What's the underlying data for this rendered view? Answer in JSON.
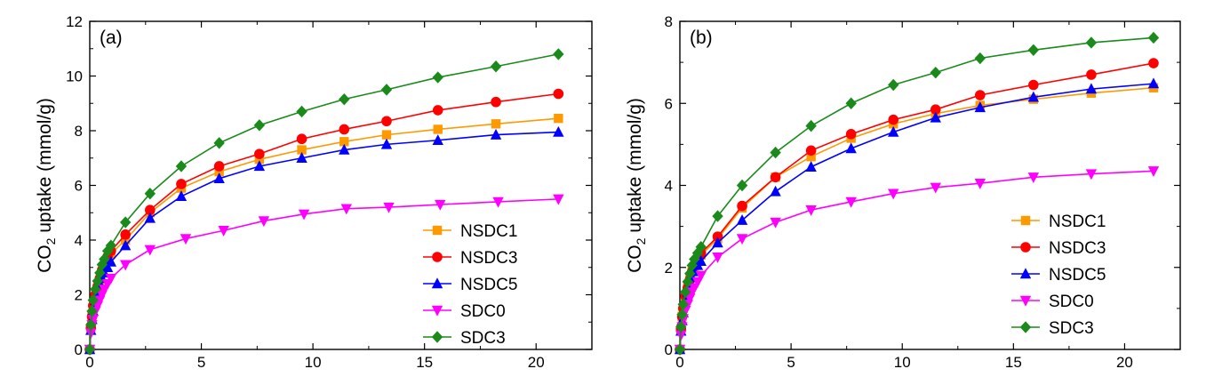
{
  "chart_data": [
    {
      "type": "line",
      "panel_label": "(a)",
      "xlabel": "",
      "ylabel_parts": {
        "pre": "CO",
        "sub": "2",
        "post": " uptake (mmol/g)"
      },
      "xlim": [
        0,
        22.5
      ],
      "ylim": [
        0,
        12
      ],
      "xticks": [
        0,
        5,
        10,
        15,
        20
      ],
      "yticks": [
        0,
        2,
        4,
        6,
        8,
        10,
        12
      ],
      "grid": false,
      "legend_position": "bottom-right",
      "series": [
        {
          "name": "NSDC1",
          "color": "#ff9900",
          "marker": "square",
          "x": [
            0,
            0.05,
            0.1,
            0.15,
            0.25,
            0.35,
            0.45,
            0.55,
            0.65,
            0.8,
            0.95,
            1.6,
            2.7,
            4.1,
            5.8,
            7.6,
            9.5,
            11.4,
            13.3,
            15.6,
            18.2,
            21.0
          ],
          "y": [
            0,
            0.8,
            1.2,
            1.5,
            1.9,
            2.2,
            2.5,
            2.8,
            3.0,
            3.3,
            3.5,
            4.0,
            5.0,
            5.9,
            6.5,
            6.95,
            7.3,
            7.6,
            7.85,
            8.05,
            8.25,
            8.45
          ]
        },
        {
          "name": "NSDC3",
          "color": "#ff0000",
          "marker": "circle",
          "x": [
            0,
            0.05,
            0.1,
            0.15,
            0.25,
            0.35,
            0.45,
            0.55,
            0.65,
            0.8,
            0.95,
            1.6,
            2.7,
            4.1,
            5.8,
            7.6,
            9.5,
            11.4,
            13.3,
            15.6,
            18.2,
            21.0
          ],
          "y": [
            0,
            0.8,
            1.2,
            1.6,
            2.0,
            2.3,
            2.6,
            2.9,
            3.1,
            3.4,
            3.6,
            4.2,
            5.1,
            6.05,
            6.7,
            7.15,
            7.7,
            8.05,
            8.35,
            8.75,
            9.05,
            9.35
          ]
        },
        {
          "name": "NSDC5",
          "color": "#0000ff",
          "marker": "triangle-up",
          "x": [
            0,
            0.05,
            0.1,
            0.15,
            0.25,
            0.35,
            0.45,
            0.55,
            0.65,
            0.8,
            0.95,
            1.6,
            2.7,
            4.1,
            5.8,
            7.6,
            9.5,
            11.4,
            13.3,
            15.6,
            18.2,
            21.0
          ],
          "y": [
            0,
            0.7,
            1.1,
            1.4,
            1.8,
            2.1,
            2.4,
            2.6,
            2.8,
            3.0,
            3.2,
            3.8,
            4.8,
            5.6,
            6.25,
            6.7,
            7.0,
            7.3,
            7.5,
            7.65,
            7.85,
            7.95
          ]
        },
        {
          "name": "SDC0",
          "color": "#ff00ff",
          "marker": "triangle-down",
          "x": [
            0,
            0.05,
            0.1,
            0.15,
            0.25,
            0.35,
            0.45,
            0.55,
            0.65,
            0.8,
            0.95,
            1.6,
            2.7,
            4.3,
            6.0,
            7.8,
            9.6,
            11.5,
            13.4,
            15.7,
            18.3,
            21.0
          ],
          "y": [
            0,
            0.6,
            0.9,
            1.1,
            1.4,
            1.6,
            1.8,
            2.0,
            2.2,
            2.4,
            2.6,
            3.1,
            3.65,
            4.05,
            4.35,
            4.7,
            4.95,
            5.15,
            5.2,
            5.3,
            5.4,
            5.5
          ]
        },
        {
          "name": "SDC3",
          "color": "#1a8a1a",
          "marker": "diamond",
          "x": [
            0,
            0.05,
            0.1,
            0.15,
            0.25,
            0.35,
            0.45,
            0.55,
            0.65,
            0.8,
            0.95,
            1.6,
            2.7,
            4.1,
            5.8,
            7.6,
            9.5,
            11.4,
            13.3,
            15.6,
            18.2,
            21.0
          ],
          "y": [
            0,
            0.9,
            1.4,
            1.8,
            2.2,
            2.5,
            2.8,
            3.1,
            3.3,
            3.6,
            3.8,
            4.65,
            5.7,
            6.7,
            7.55,
            8.2,
            8.7,
            9.15,
            9.5,
            9.95,
            10.35,
            10.8
          ]
        }
      ]
    },
    {
      "type": "line",
      "panel_label": "(b)",
      "xlabel": "",
      "ylabel_parts": {
        "pre": "CO",
        "sub": "2",
        "post": " uptake (mmol/g)"
      },
      "xlim": [
        0,
        22.5
      ],
      "ylim": [
        0,
        8
      ],
      "xticks": [
        0,
        5,
        10,
        15,
        20
      ],
      "yticks": [
        0,
        2,
        4,
        6,
        8
      ],
      "grid": false,
      "legend_position": "bottom-right",
      "series": [
        {
          "name": "NSDC1",
          "color": "#ff9900",
          "marker": "square",
          "x": [
            0,
            0.05,
            0.1,
            0.15,
            0.25,
            0.35,
            0.45,
            0.55,
            0.65,
            0.8,
            0.95,
            1.7,
            2.8,
            4.3,
            5.9,
            7.7,
            9.6,
            11.5,
            13.5,
            15.9,
            18.5,
            21.3
          ],
          "y": [
            0,
            0.5,
            0.8,
            1.0,
            1.3,
            1.5,
            1.7,
            1.9,
            2.0,
            2.2,
            2.3,
            2.7,
            3.45,
            4.2,
            4.7,
            5.15,
            5.5,
            5.75,
            5.95,
            6.1,
            6.25,
            6.38
          ]
        },
        {
          "name": "NSDC3",
          "color": "#ff0000",
          "marker": "circle",
          "x": [
            0,
            0.05,
            0.1,
            0.15,
            0.25,
            0.35,
            0.45,
            0.55,
            0.65,
            0.8,
            0.95,
            1.7,
            2.8,
            4.3,
            5.9,
            7.7,
            9.6,
            11.5,
            13.5,
            15.9,
            18.5,
            21.3
          ],
          "y": [
            0,
            0.5,
            0.8,
            1.0,
            1.3,
            1.5,
            1.7,
            1.9,
            2.05,
            2.2,
            2.35,
            2.75,
            3.5,
            4.2,
            4.85,
            5.25,
            5.6,
            5.85,
            6.2,
            6.45,
            6.7,
            6.98
          ]
        },
        {
          "name": "NSDC5",
          "color": "#0000ff",
          "marker": "triangle-up",
          "x": [
            0,
            0.05,
            0.1,
            0.15,
            0.25,
            0.35,
            0.45,
            0.55,
            0.65,
            0.8,
            0.95,
            1.7,
            2.8,
            4.3,
            5.9,
            7.7,
            9.6,
            11.5,
            13.5,
            15.9,
            18.5,
            21.3
          ],
          "y": [
            0,
            0.45,
            0.7,
            0.9,
            1.2,
            1.4,
            1.6,
            1.75,
            1.9,
            2.05,
            2.15,
            2.6,
            3.15,
            3.85,
            4.45,
            4.9,
            5.3,
            5.65,
            5.9,
            6.15,
            6.35,
            6.48
          ]
        },
        {
          "name": "SDC0",
          "color": "#ff00ff",
          "marker": "triangle-down",
          "x": [
            0,
            0.05,
            0.1,
            0.15,
            0.25,
            0.35,
            0.45,
            0.55,
            0.65,
            0.8,
            0.95,
            1.7,
            2.8,
            4.3,
            5.9,
            7.7,
            9.6,
            11.5,
            13.5,
            15.9,
            18.5,
            21.3
          ],
          "y": [
            0,
            0.35,
            0.55,
            0.75,
            0.95,
            1.1,
            1.25,
            1.4,
            1.5,
            1.65,
            1.8,
            2.25,
            2.7,
            3.1,
            3.4,
            3.6,
            3.8,
            3.95,
            4.05,
            4.2,
            4.28,
            4.35
          ]
        },
        {
          "name": "SDC3",
          "color": "#1a8a1a",
          "marker": "diamond",
          "x": [
            0,
            0.05,
            0.1,
            0.15,
            0.25,
            0.35,
            0.45,
            0.55,
            0.65,
            0.8,
            0.95,
            1.7,
            2.8,
            4.3,
            5.9,
            7.7,
            9.6,
            11.5,
            13.5,
            15.9,
            18.5,
            21.3
          ],
          "y": [
            0,
            0.55,
            0.85,
            1.1,
            1.4,
            1.65,
            1.85,
            2.05,
            2.2,
            2.35,
            2.5,
            3.25,
            4.0,
            4.8,
            5.45,
            6.0,
            6.45,
            6.75,
            7.1,
            7.3,
            7.48,
            7.6
          ]
        }
      ]
    }
  ]
}
